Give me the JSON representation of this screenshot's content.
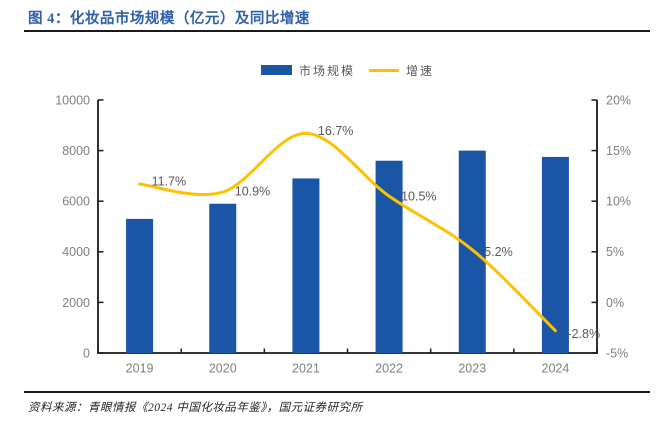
{
  "header": {
    "title": "图 4：化妆品市场规模（亿元）及同比增速"
  },
  "legend": {
    "items": [
      {
        "label": "市场规模",
        "swatch": "bar-swatch"
      },
      {
        "label": "增速",
        "swatch": "line-swatch"
      }
    ]
  },
  "chart_data": {
    "type": "bar+line combo",
    "title": "图 4：化妆品市场规模（亿元）及同比增速",
    "categories": [
      "2019",
      "2020",
      "2021",
      "2022",
      "2023",
      "2024"
    ],
    "series": [
      {
        "name": "市场规模",
        "type": "bar",
        "axis": "left",
        "unit": "亿元",
        "values": [
          5300,
          5900,
          6900,
          7600,
          8000,
          7750
        ]
      },
      {
        "name": "增速",
        "type": "line",
        "axis": "right",
        "unit": "%",
        "values": [
          11.7,
          10.9,
          16.7,
          10.5,
          5.2,
          -2.8
        ],
        "point_labels": [
          "11.7%",
          "10.9%",
          "16.7%",
          "10.5%",
          "5.2%",
          "-2.8%"
        ]
      }
    ],
    "left_axis": {
      "min": 0,
      "max": 10000,
      "step": 2000,
      "tick_labels": [
        "0",
        "2000",
        "4000",
        "6000",
        "8000",
        "10000"
      ]
    },
    "right_axis": {
      "min": -5,
      "max": 20,
      "step": 5,
      "tick_labels": [
        "-5%",
        "0%",
        "5%",
        "10%",
        "15%",
        "20%"
      ]
    },
    "legend_position": "top-center",
    "grid": false
  },
  "footer": {
    "source": "资料来源：青眼情报《2024 中国化妆品年鉴》，国元证券研究所"
  },
  "colors": {
    "bar": "#1B55A5",
    "line": "#FFC000",
    "title": "#2F5FA8",
    "axis": "#1a1a1a",
    "tick_label": "#808080",
    "data_label": "#595959"
  }
}
